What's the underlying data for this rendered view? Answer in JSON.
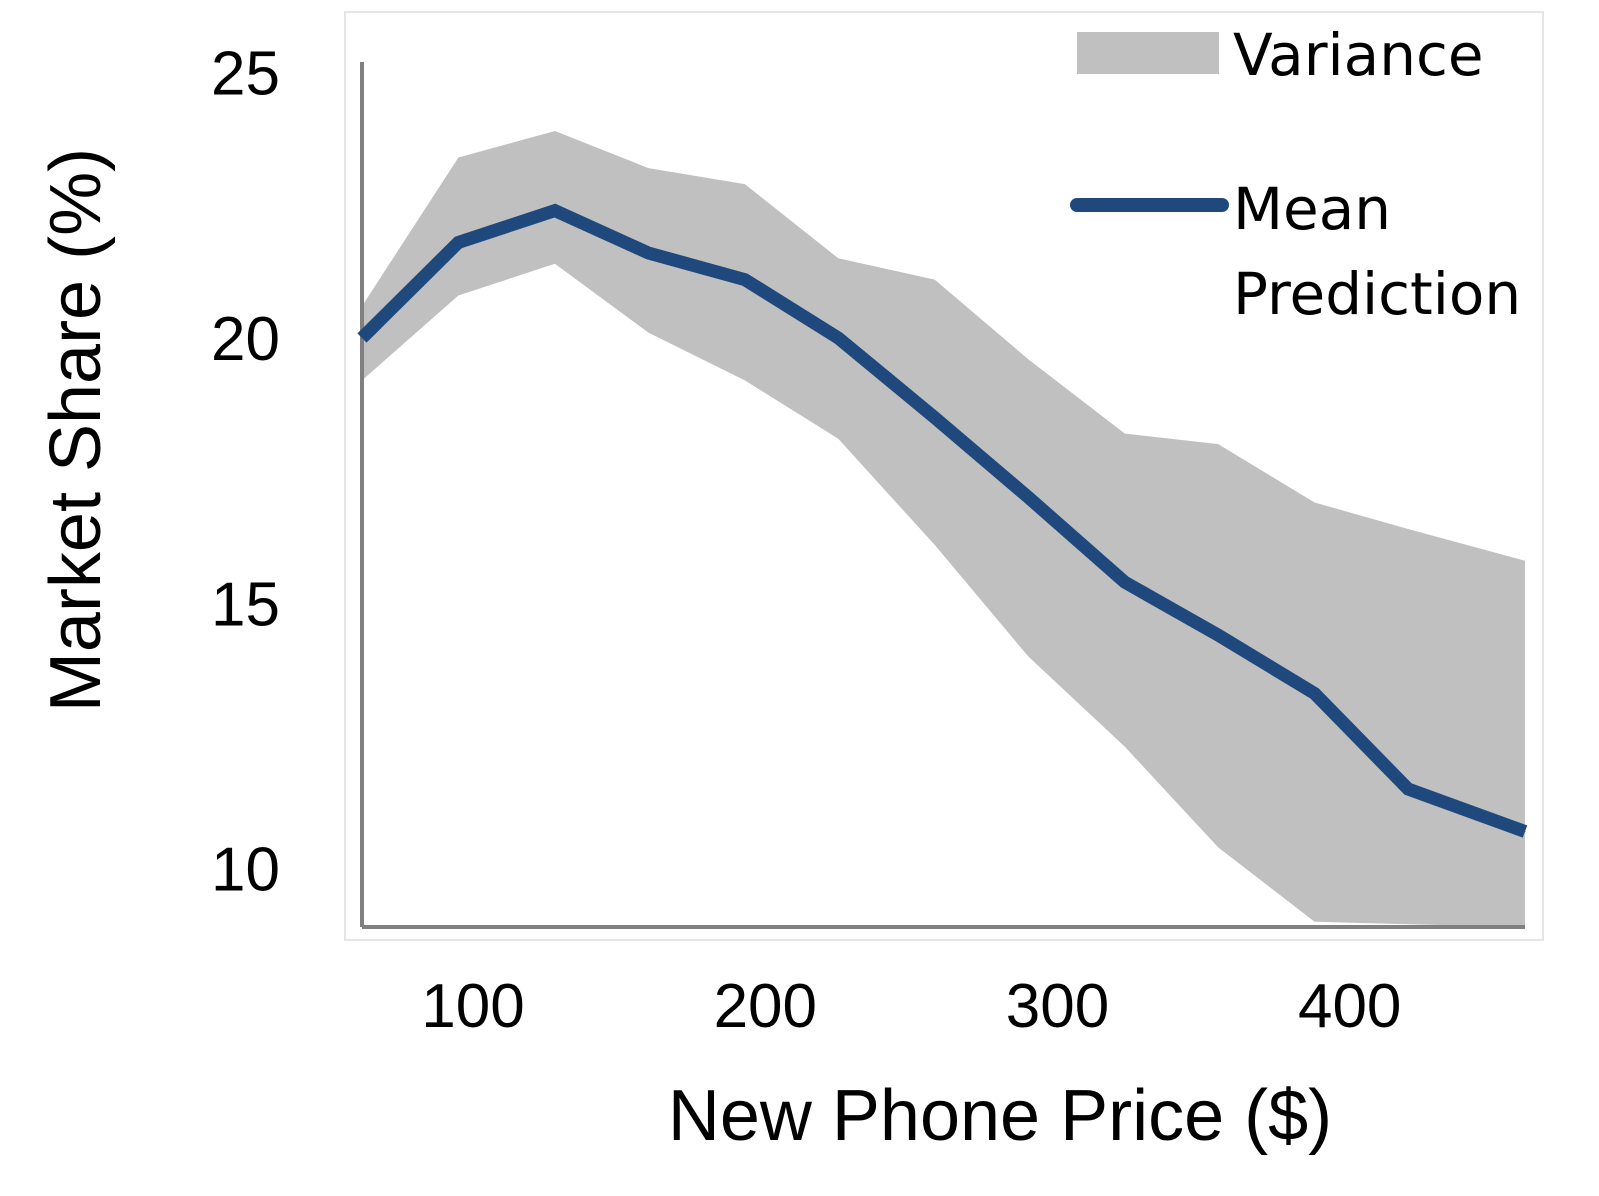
{
  "colors": {
    "band": "#c0c0c0",
    "line": "#1f497d",
    "axis": "#808080",
    "frame": "#e6e6e6"
  },
  "chart_data": {
    "type": "line",
    "xlabel": "New Phone Price ($)",
    "ylabel": "Market Share (%)",
    "xlim": [
      62,
      460
    ],
    "ylim": [
      8.9,
      25.2
    ],
    "x_ticks": [
      "100",
      "200",
      "300",
      "400"
    ],
    "y_ticks": [
      "10",
      "15",
      "20",
      "25"
    ],
    "grid": false,
    "legend_position": "top-right",
    "legend": {
      "band_label": "Variance",
      "line_label": [
        "Mean",
        "Prediction"
      ]
    },
    "series": [
      {
        "name": "Mean Prediction",
        "type": "line",
        "x": [
          62,
          95,
          128,
          160,
          193,
          225,
          258,
          290,
          323,
          355,
          388,
          420,
          460
        ],
        "y": [
          20.0,
          21.8,
          22.4,
          21.6,
          21.1,
          20.0,
          18.5,
          17.0,
          15.4,
          14.4,
          13.3,
          11.5,
          10.7
        ]
      },
      {
        "name": "Variance",
        "type": "band",
        "x": [
          62,
          95,
          128,
          160,
          193,
          225,
          258,
          290,
          323,
          355,
          388,
          420,
          460
        ],
        "lower": [
          19.2,
          20.8,
          21.4,
          20.1,
          19.2,
          18.1,
          16.1,
          14.0,
          12.3,
          10.4,
          9.0,
          8.95,
          8.9
        ],
        "upper": [
          20.6,
          23.4,
          23.9,
          23.2,
          22.9,
          21.5,
          21.1,
          19.6,
          18.2,
          18.0,
          16.9,
          16.4,
          15.8
        ]
      }
    ]
  }
}
